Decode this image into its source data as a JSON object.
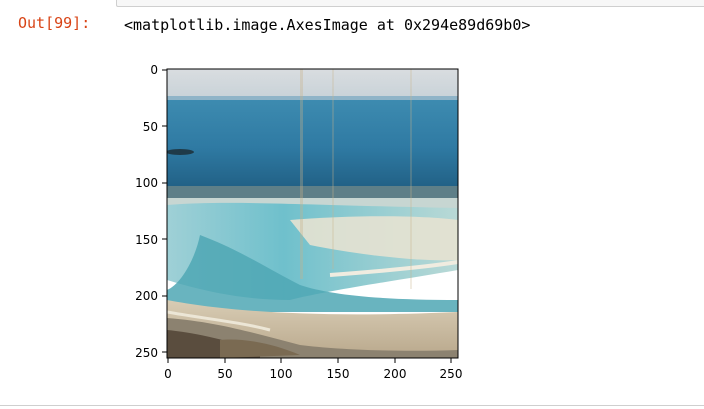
{
  "output_cell": {
    "prompt": "Out[99]:",
    "text": "<matplotlib.image.AxesImage at 0x294e89d69b0>"
  },
  "colors": {
    "prompt": "#d84315",
    "text": "#000000"
  },
  "plot": {
    "x_ticks": [
      "0",
      "50",
      "100",
      "150",
      "200",
      "250"
    ],
    "y_ticks": [
      "0",
      "50",
      "100",
      "150",
      "200",
      "250"
    ],
    "image": "photo of a shallow turquoise lagoon on a beach under a pale sky"
  }
}
